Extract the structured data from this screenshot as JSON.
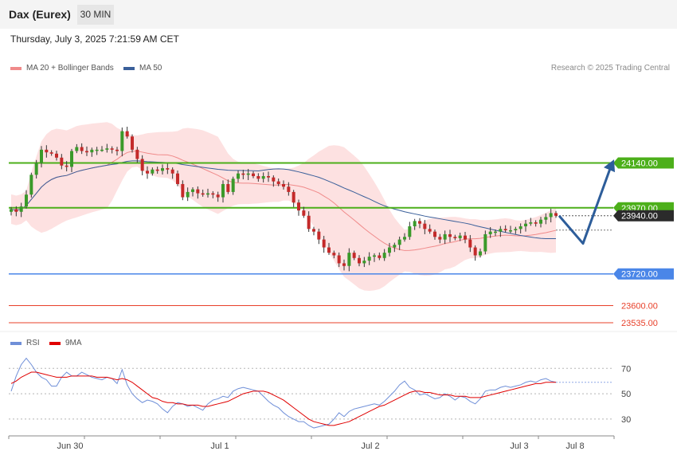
{
  "header": {
    "instrument": "Dax (Eurex)",
    "timeframe": "30 MIN"
  },
  "timestamp": "Thursday, July 3, 2025 7:21:59 AM CET",
  "attribution": "Research © 2025 Trading Central",
  "chart_data": [
    {
      "type": "candlestick",
      "legend": [
        {
          "name": "MA 20 + Bollinger Bands",
          "color": "#f08a8a"
        },
        {
          "name": "MA 50",
          "color": "#3a5f9a"
        }
      ],
      "ylim": [
        23520,
        24455
      ],
      "levels": [
        {
          "value": 24140,
          "label": "24140.00",
          "color": "#4caf1a",
          "kind": "resistance"
        },
        {
          "value": 23970,
          "label": "23970.00",
          "color": "#4caf1a",
          "kind": "resistance"
        },
        {
          "value": 23940,
          "label": "23940.00",
          "color": "#333333",
          "kind": "last-price"
        },
        {
          "value": 23720,
          "label": "23720.00",
          "color": "#4a86e8",
          "kind": "pivot"
        },
        {
          "value": 23600,
          "label": "23600.00",
          "color": "#e8402a",
          "kind": "support"
        },
        {
          "value": 23535,
          "label": "23535.00",
          "color": "#e8402a",
          "kind": "support"
        }
      ],
      "x_ticks": [
        "Jun 30",
        "Jul 1",
        "Jul 2",
        "Jul 3",
        "Jul 8"
      ],
      "price_path": [
        23965,
        23955,
        23975,
        24020,
        24095,
        24140,
        24190,
        24180,
        24175,
        24160,
        24130,
        24125,
        24185,
        24200,
        24185,
        24180,
        24190,
        24190,
        24190,
        24195,
        24190,
        24185,
        24260,
        24240,
        24190,
        24155,
        24110,
        24100,
        24115,
        24110,
        24120,
        24115,
        24100,
        24060,
        24010,
        24030,
        24040,
        24025,
        24020,
        24025,
        24020,
        24010,
        24060,
        24030,
        24080,
        24100,
        24095,
        24100,
        24090,
        24080,
        24090,
        24085,
        24070,
        24060,
        24050,
        24030,
        23990,
        23960,
        23940,
        23890,
        23880,
        23850,
        23820,
        23800,
        23790,
        23760,
        23750,
        23800,
        23780,
        23760,
        23770,
        23785,
        23790,
        23780,
        23800,
        23820,
        23830,
        23850,
        23860,
        23900,
        23920,
        23910,
        23890,
        23880,
        23860,
        23850,
        23870,
        23860,
        23855,
        23865,
        23850,
        23820,
        23790,
        23805,
        23870,
        23880,
        23880,
        23890,
        23885,
        23885,
        23890,
        23900,
        23910,
        23915,
        23910,
        23925,
        23935,
        23950,
        23940
      ],
      "projection": [
        23940,
        23835,
        24135
      ],
      "arrow_color": "#2d5d9a"
    },
    {
      "type": "line",
      "legend": [
        {
          "name": "RSI",
          "color": "#6f8fd8"
        },
        {
          "name": "9MA",
          "color": "#e00000"
        }
      ],
      "ylim": [
        18,
        84
      ],
      "y_ticks": [
        70,
        50,
        30
      ],
      "rsi": [
        52,
        64,
        73,
        78,
        73,
        67,
        63,
        61,
        56,
        56,
        63,
        67,
        64,
        64,
        67,
        65,
        63,
        62,
        61,
        63,
        62,
        58,
        69,
        57,
        50,
        46,
        43,
        45,
        44,
        42,
        38,
        35,
        40,
        43,
        42,
        40,
        41,
        39,
        37,
        42,
        45,
        46,
        48,
        47,
        52,
        54,
        55,
        54,
        53,
        52,
        48,
        44,
        41,
        39,
        35,
        32,
        30,
        28,
        28,
        25,
        23,
        24,
        25,
        26,
        30,
        35,
        32,
        36,
        38,
        39,
        40,
        41,
        42,
        41,
        44,
        48,
        52,
        57,
        60,
        55,
        53,
        49,
        50,
        48,
        46,
        47,
        50,
        48,
        45,
        48,
        47,
        44,
        42,
        46,
        52,
        53,
        53,
        55,
        56,
        55,
        56,
        57,
        59,
        60,
        59,
        61,
        62,
        60,
        59
      ],
      "ma9": [
        58,
        60,
        63,
        65,
        67,
        67,
        66,
        65,
        64,
        63,
        63,
        63,
        64,
        64,
        64,
        64,
        64,
        63,
        63,
        63,
        62,
        61,
        62,
        61,
        59,
        56,
        53,
        50,
        47,
        46,
        44,
        43,
        43,
        42,
        42,
        41,
        41,
        41,
        40,
        40,
        41,
        42,
        43,
        44,
        46,
        48,
        50,
        51,
        52,
        52,
        52,
        51,
        49,
        47,
        45,
        42,
        39,
        36,
        33,
        30,
        28,
        27,
        26,
        25,
        25,
        26,
        27,
        28,
        30,
        32,
        34,
        36,
        38,
        40,
        41,
        43,
        45,
        47,
        49,
        51,
        52,
        52,
        51,
        51,
        50,
        49,
        49,
        49,
        48,
        48,
        48,
        47,
        47,
        47,
        48,
        49,
        50,
        51,
        52,
        53,
        54,
        55,
        56,
        57,
        58,
        58,
        59,
        59,
        59
      ]
    }
  ]
}
